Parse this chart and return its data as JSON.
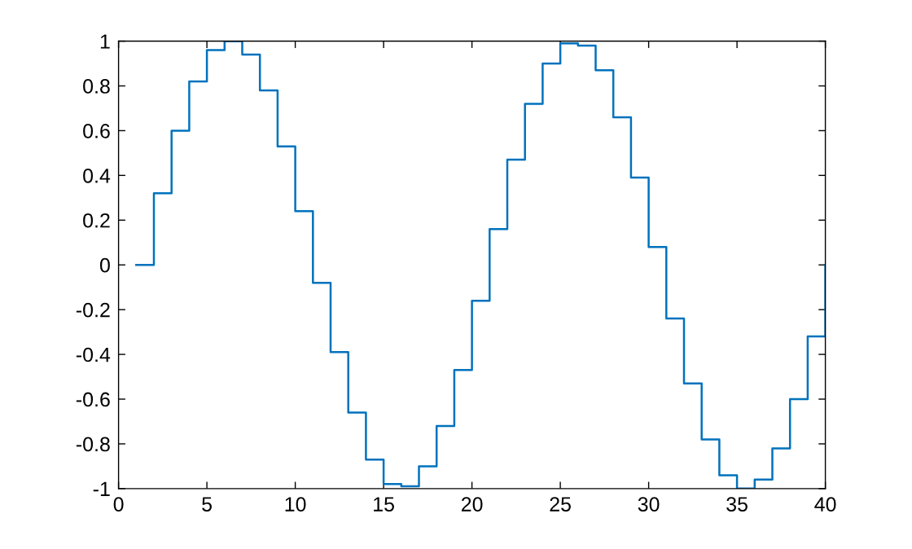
{
  "chart_data": {
    "type": "step",
    "x": [
      1,
      2,
      3,
      4,
      5,
      6,
      7,
      8,
      9,
      10,
      11,
      12,
      13,
      14,
      15,
      16,
      17,
      18,
      19,
      20,
      21,
      22,
      23,
      24,
      25,
      26,
      27,
      28,
      29,
      30,
      31,
      32,
      33,
      34,
      35,
      36,
      37,
      38,
      39,
      40
    ],
    "series": [
      {
        "color": "#0072bd",
        "values": [
          0,
          0.32,
          0.6,
          0.82,
          0.96,
          1.0,
          0.94,
          0.78,
          0.53,
          0.24,
          -0.08,
          -0.39,
          -0.66,
          -0.87,
          -0.98,
          -0.99,
          -0.9,
          -0.72,
          -0.47,
          -0.16,
          0.16,
          0.47,
          0.72,
          0.9,
          0.99,
          0.98,
          0.87,
          0.66,
          0.39,
          0.08,
          -0.24,
          -0.53,
          -0.78,
          -0.94,
          -1.0,
          -0.96,
          -0.82,
          -0.6,
          -0.32,
          0
        ]
      }
    ],
    "xlim": [
      0,
      40
    ],
    "ylim": [
      -1,
      1
    ],
    "xticks": [
      0,
      5,
      10,
      15,
      20,
      25,
      30,
      35,
      40
    ],
    "yticks": [
      -1,
      -0.8,
      -0.6,
      -0.4,
      -0.2,
      0,
      0.2,
      0.4,
      0.6,
      0.8,
      1
    ],
    "grid": false,
    "legend": false
  }
}
